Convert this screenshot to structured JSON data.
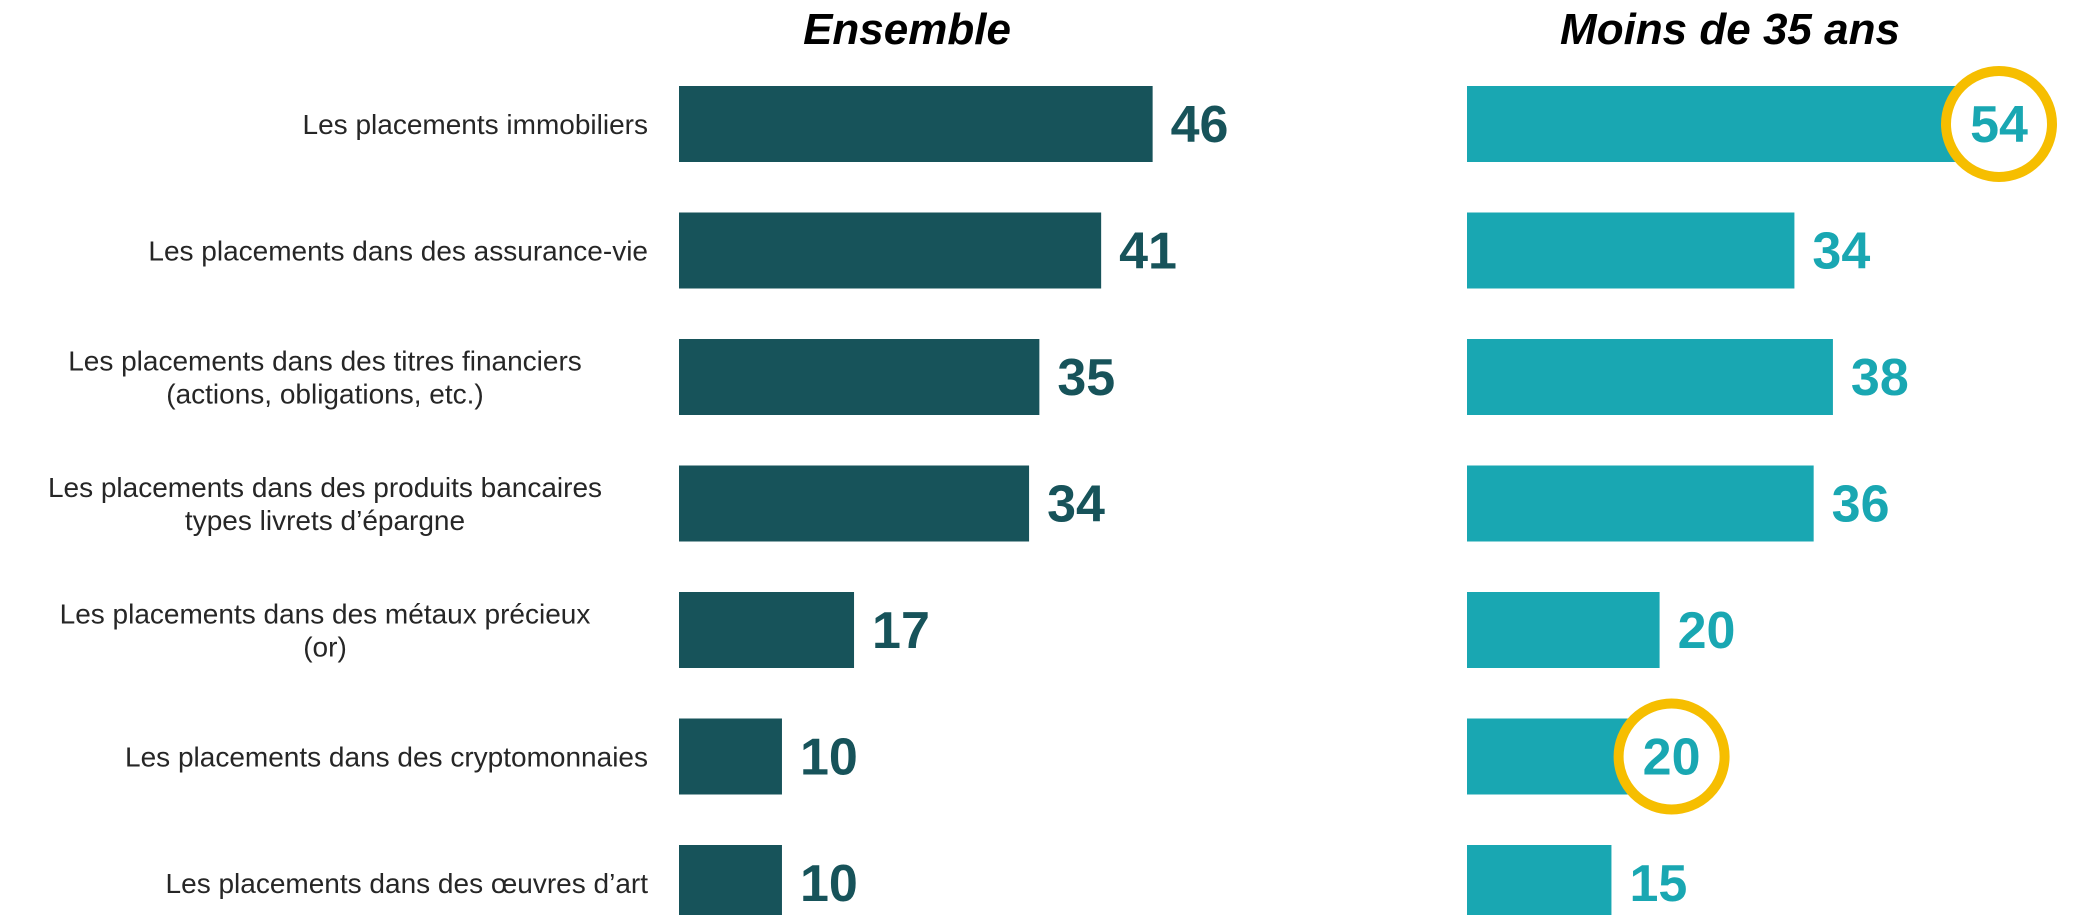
{
  "chart_data": {
    "type": "bar",
    "orientation": "horizontal",
    "categories": [
      [
        "Les placements immobiliers"
      ],
      [
        "Les placements dans des assurance-vie"
      ],
      [
        "Les placements dans des titres financiers",
        "(actions, obligations, etc.)"
      ],
      [
        "Les placements dans des produits bancaires",
        "types livrets d’épargne"
      ],
      [
        "Les placements dans des métaux précieux",
        "(or)"
      ],
      [
        "Les placements dans des cryptomonnaies"
      ],
      [
        "Les placements dans des œuvres d’art"
      ]
    ],
    "series": [
      {
        "name": "Ensemble",
        "values": [
          46,
          41,
          35,
          34,
          17,
          10,
          10
        ],
        "color": "#17535a",
        "highlighted": []
      },
      {
        "name": "Moins de 35 ans",
        "values": [
          54,
          34,
          38,
          36,
          20,
          20,
          15
        ],
        "color": "#19a7b2",
        "highlighted": [
          0,
          5
        ]
      }
    ],
    "highlight_color": "#f6be00",
    "xlim": [
      0,
      54
    ],
    "grid": false,
    "legend": "none"
  }
}
